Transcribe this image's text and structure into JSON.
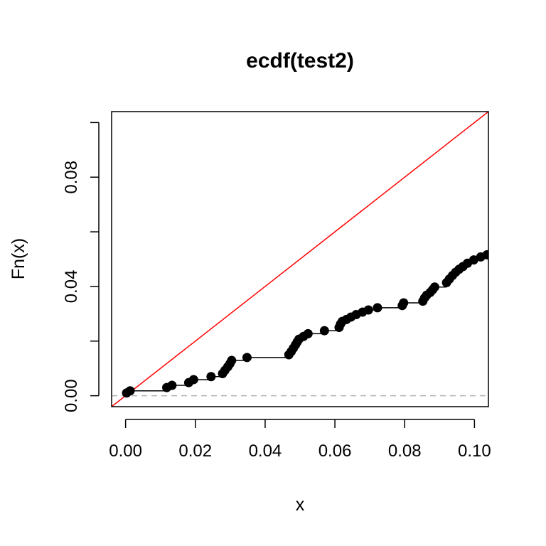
{
  "chart_data": {
    "type": "scatter",
    "title": "ecdf(test2)",
    "xlabel": "x",
    "ylabel": "Fn(x)",
    "xlim": [
      -0.004,
      0.104
    ],
    "ylim": [
      -0.004,
      0.104
    ],
    "x_ticks": [
      0.0,
      0.02,
      0.04,
      0.06,
      0.08,
      0.1
    ],
    "x_tick_labels": [
      "0.00",
      "0.02",
      "0.04",
      "0.06",
      "0.08",
      "0.10"
    ],
    "y_ticks": [
      0.0,
      0.02,
      0.04,
      0.06,
      0.08,
      0.1
    ],
    "y_tick_labels": [
      "0.00",
      "",
      "0.04",
      "",
      "0.08",
      ""
    ],
    "grid": false,
    "colors": {
      "points": "#000000",
      "step": "#000000",
      "reference": "#ff0000",
      "baseline": "#b3b3b3"
    },
    "reference_line": {
      "from": [
        -0.004,
        -0.004
      ],
      "to": [
        0.104,
        0.104
      ]
    },
    "baseline": 0,
    "points": [
      [
        0.0003,
        0.001
      ],
      [
        0.0013,
        0.0018
      ],
      [
        0.0118,
        0.003
      ],
      [
        0.0133,
        0.0038
      ],
      [
        0.0181,
        0.0048
      ],
      [
        0.0195,
        0.0059
      ],
      [
        0.0245,
        0.007
      ],
      [
        0.0278,
        0.0081
      ],
      [
        0.0285,
        0.0093
      ],
      [
        0.0293,
        0.0106
      ],
      [
        0.0299,
        0.0117
      ],
      [
        0.0304,
        0.0129
      ],
      [
        0.0348,
        0.014
      ],
      [
        0.0468,
        0.015
      ],
      [
        0.0475,
        0.0162
      ],
      [
        0.0481,
        0.0174
      ],
      [
        0.0487,
        0.0186
      ],
      [
        0.0492,
        0.0197
      ],
      [
        0.0497,
        0.0207
      ],
      [
        0.051,
        0.0217
      ],
      [
        0.0523,
        0.0227
      ],
      [
        0.057,
        0.0238
      ],
      [
        0.0612,
        0.025
      ],
      [
        0.0616,
        0.0262
      ],
      [
        0.0621,
        0.0272
      ],
      [
        0.0633,
        0.0279
      ],
      [
        0.0646,
        0.0288
      ],
      [
        0.0661,
        0.0297
      ],
      [
        0.0679,
        0.0306
      ],
      [
        0.0696,
        0.0314
      ],
      [
        0.0722,
        0.0322
      ],
      [
        0.0793,
        0.033
      ],
      [
        0.0797,
        0.034
      ],
      [
        0.0852,
        0.0346
      ],
      [
        0.0857,
        0.0358
      ],
      [
        0.0863,
        0.0368
      ],
      [
        0.0873,
        0.0378
      ],
      [
        0.088,
        0.0388
      ],
      [
        0.0886,
        0.0398
      ],
      [
        0.092,
        0.0414
      ],
      [
        0.0928,
        0.0427
      ],
      [
        0.0937,
        0.044
      ],
      [
        0.0946,
        0.0452
      ],
      [
        0.0956,
        0.0463
      ],
      [
        0.0967,
        0.0473
      ],
      [
        0.098,
        0.0485
      ],
      [
        0.0998,
        0.0497
      ],
      [
        0.1018,
        0.0508
      ],
      [
        0.1036,
        0.0516
      ]
    ]
  }
}
